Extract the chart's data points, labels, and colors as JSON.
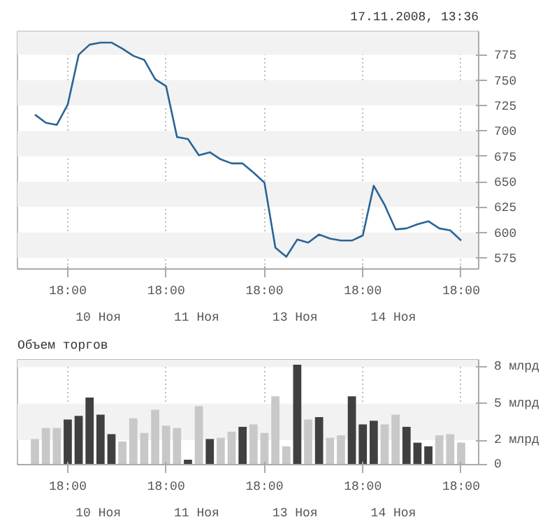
{
  "chart_data": [
    {
      "type": "line",
      "subtitle": "17.11.2008, 13:36",
      "color": "#2a6496",
      "line_style": "solid",
      "marker": "none",
      "grid": true,
      "categories": [
        null,
        null,
        null,
        "18:00",
        null,
        null,
        null,
        null,
        null,
        null,
        null,
        null,
        "18:00",
        null,
        null,
        null,
        null,
        null,
        null,
        null,
        null,
        "18:00",
        null,
        null,
        null,
        null,
        null,
        null,
        null,
        null,
        "18:00",
        null,
        null,
        null,
        null,
        null,
        null,
        null,
        null,
        "18:00"
      ],
      "values": [
        716,
        708,
        706,
        726,
        775,
        785,
        787,
        787,
        781,
        774,
        770,
        751,
        744,
        694,
        692,
        676,
        679,
        672,
        668,
        668,
        659,
        649,
        585,
        576,
        593,
        590,
        598,
        594,
        592,
        592,
        597,
        646,
        627,
        603,
        604,
        608,
        611,
        604,
        602,
        592
      ],
      "annotations": [
        "10 Ноя",
        "11 Ноя",
        "13 Ноя",
        "14 Ноя"
      ],
      "ylim": [
        564,
        798
      ],
      "yticks": [
        575,
        600,
        625,
        650,
        675,
        700,
        725,
        750,
        775
      ]
    },
    {
      "type": "bar",
      "title": "Объем торгов",
      "grid": true,
      "categories": [
        null,
        null,
        null,
        "18:00",
        null,
        null,
        null,
        null,
        null,
        null,
        null,
        null,
        "18:00",
        null,
        null,
        null,
        null,
        null,
        null,
        null,
        null,
        "18:00",
        null,
        null,
        null,
        null,
        null,
        null,
        null,
        null,
        "18:00",
        null,
        null,
        null,
        null,
        null,
        null,
        null,
        null,
        "18:00"
      ],
      "values": [
        2.1,
        3.0,
        3.0,
        3.7,
        4.0,
        5.5,
        4.1,
        2.5,
        1.9,
        3.8,
        2.6,
        4.5,
        3.2,
        3.0,
        0.4,
        4.8,
        2.1,
        2.2,
        2.7,
        3.1,
        3.3,
        2.6,
        5.6,
        1.5,
        8.2,
        3.7,
        3.9,
        2.2,
        2.4,
        5.6,
        3.3,
        3.6,
        3.3,
        4.1,
        3.1,
        1.8,
        1.5,
        2.4,
        2.5,
        1.8
      ],
      "colors": [
        "#c8c8c8",
        "#c8c8c8",
        "#c8c8c8",
        "#404040",
        "#404040",
        "#404040",
        "#404040",
        "#404040",
        "#c8c8c8",
        "#c8c8c8",
        "#c8c8c8",
        "#c8c8c8",
        "#c8c8c8",
        "#c8c8c8",
        "#404040",
        "#c8c8c8",
        "#404040",
        "#c8c8c8",
        "#c8c8c8",
        "#404040",
        "#c8c8c8",
        "#c8c8c8",
        "#c8c8c8",
        "#c8c8c8",
        "#404040",
        "#c8c8c8",
        "#404040",
        "#c8c8c8",
        "#c8c8c8",
        "#404040",
        "#404040",
        "#404040",
        "#c8c8c8",
        "#c8c8c8",
        "#404040",
        "#404040",
        "#404040",
        "#c8c8c8",
        "#c8c8c8",
        "#c8c8c8"
      ],
      "annotations": [
        "10 Ноя",
        "11 Ноя",
        "13 Ноя",
        "14 Ноя"
      ],
      "ylim": [
        0,
        8.6
      ],
      "yticks": [
        0,
        {
          "value": 2,
          "label": "2 млрд"
        },
        {
          "value": 5,
          "label": "5 млрд"
        },
        {
          "value": 8,
          "label": "8 млрд"
        }
      ]
    }
  ]
}
